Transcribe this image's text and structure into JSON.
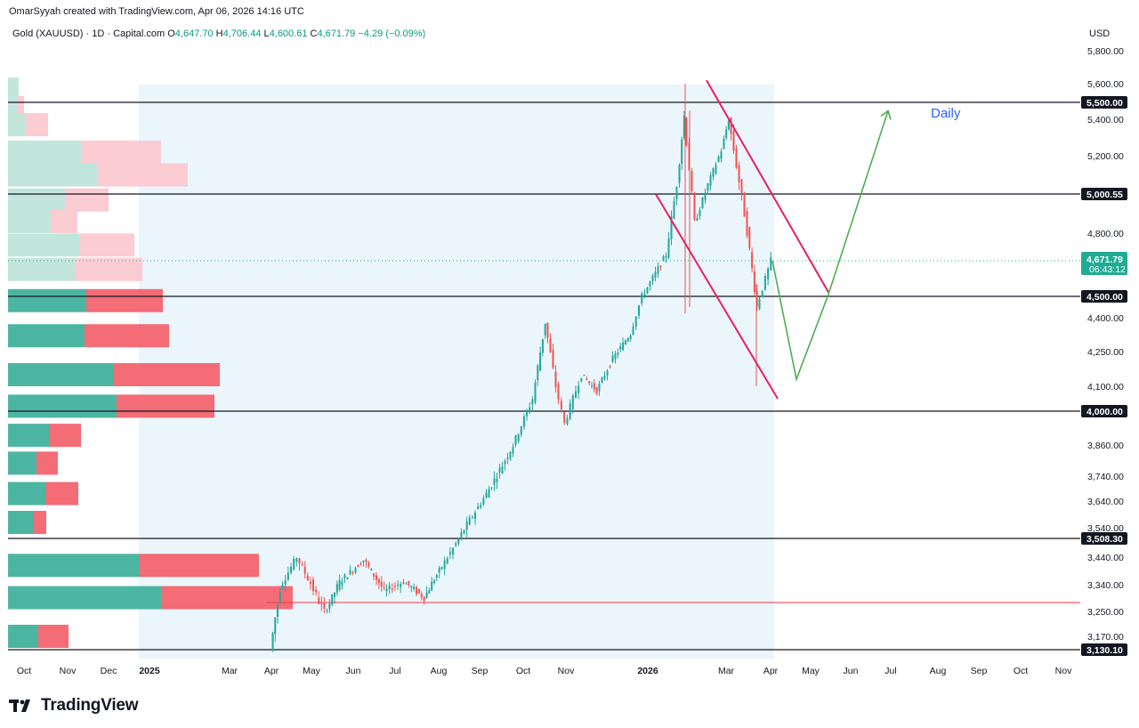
{
  "header": {
    "attribution": "OmarSyyah created with TradingView.com, Apr 06, 2026 14:16 UTC"
  },
  "legend": {
    "symbol": "Gold (XAUUSD) · 1D · Capital.com",
    "open_label": "O",
    "open": "4,647.70",
    "high_label": "H",
    "high": "4,706.44",
    "low_label": "L",
    "low": "4,600.61",
    "close_label": "C",
    "close": "4,671.79",
    "change": "−4.29 (−0.09%)"
  },
  "currency": "USD",
  "logo_text": "TradingView",
  "colors": {
    "up": "#26a69a",
    "down": "#ef5350",
    "channel": "#e91e63",
    "projection": "#4caf50",
    "volume_up": "#4db6a2",
    "volume_down": "#f36c76",
    "highlight": "#eaf5fc",
    "price_badge": "#22ab94",
    "annotation": "#2962ff"
  },
  "chart_data": {
    "type": "candlestick",
    "timeframe": "1D",
    "x_ticks": [
      "Oct",
      "Nov",
      "Dec",
      "2025",
      "Mar",
      "Apr",
      "May",
      "Jun",
      "Jul",
      "Aug",
      "Sep",
      "Oct",
      "Nov",
      "2026",
      "Mar",
      "Apr",
      "May",
      "Jun",
      "Jul",
      "Aug",
      "Sep",
      "Oct",
      "Nov"
    ],
    "y_ticks": [
      "5,800.00",
      "5,600.00",
      "5,400.00",
      "5,200.00",
      "4,800.00",
      "4,400.00",
      "4,250.00",
      "4,100.00",
      "3,860.00",
      "3,740.00",
      "3,640.00",
      "3,540.00",
      "3,440.00",
      "3,340.00",
      "3,250.00",
      "3,170.00"
    ],
    "ylim": [
      3110,
      5860
    ],
    "horizontal_levels": [
      "5,500.00",
      "5,000.55",
      "4,500.00",
      "4,000.00",
      "3,508.30",
      "3,130.10"
    ],
    "red_level": 3285,
    "current_price": "4,671.79",
    "countdown": "06:43:12",
    "annotation": "Daily",
    "price_path": [
      {
        "x": "Apr",
        "y": 3130
      },
      {
        "x": "Apr",
        "y": 3330
      },
      {
        "x": "May",
        "y": 3440
      },
      {
        "x": "May",
        "y": 3250
      },
      {
        "x": "Jun",
        "y": 3350
      },
      {
        "x": "Jun",
        "y": 3430
      },
      {
        "x": "Jul",
        "y": 3320
      },
      {
        "x": "Jul",
        "y": 3350
      },
      {
        "x": "Aug",
        "y": 3300
      },
      {
        "x": "Aug",
        "y": 3390
      },
      {
        "x": "Sep",
        "y": 3520
      },
      {
        "x": "Sep",
        "y": 3650
      },
      {
        "x": "Sep",
        "y": 3860
      },
      {
        "x": "Oct",
        "y": 4050
      },
      {
        "x": "Oct",
        "y": 4380
      },
      {
        "x": "Oct",
        "y": 4100
      },
      {
        "x": "Nov",
        "y": 3950
      },
      {
        "x": "Nov",
        "y": 4150
      },
      {
        "x": "Nov",
        "y": 4080
      },
      {
        "x": "Dec",
        "y": 4220
      },
      {
        "x": "Dec",
        "y": 4330
      },
      {
        "x": "Dec",
        "y": 4500
      },
      {
        "x": "Jan",
        "y": 4700
      },
      {
        "x": "Jan",
        "y": 5050
      },
      {
        "x": "Jan",
        "y": 5420
      },
      {
        "x": "Feb",
        "y": 4850
      },
      {
        "x": "Feb",
        "y": 5050
      },
      {
        "x": "Mar",
        "y": 5230
      },
      {
        "x": "Mar",
        "y": 5400
      },
      {
        "x": "Mar",
        "y": 4900
      },
      {
        "x": "Mar",
        "y": 4450
      },
      {
        "x": "Apr",
        "y": 4672
      }
    ],
    "channel": [
      {
        "from": {
          "x": "Feb",
          "y": 5620
        },
        "to": {
          "x": "Apr",
          "y": 4520
        }
      },
      {
        "from": {
          "x": "Jan",
          "y": 5000
        },
        "to": {
          "x": "Apr",
          "y": 4050
        }
      }
    ],
    "projection": [
      {
        "x": "Apr",
        "y": 4672
      },
      {
        "x": "Apr",
        "y": 4130
      },
      {
        "x": "May",
        "y": 4510
      },
      {
        "x": "Jul",
        "y": 5450
      }
    ],
    "volume_profile": [
      {
        "price": 5570,
        "up": 12,
        "down": 0
      },
      {
        "price": 5470,
        "up": 10,
        "down": 8
      },
      {
        "price": 5370,
        "up": 20,
        "down": 25
      },
      {
        "price": 5220,
        "up": 82,
        "down": 90
      },
      {
        "price": 5100,
        "up": 100,
        "down": 102
      },
      {
        "price": 4970,
        "up": 65,
        "down": 48
      },
      {
        "price": 4860,
        "up": 48,
        "down": 30
      },
      {
        "price": 4745,
        "up": 80,
        "down": 62
      },
      {
        "price": 4630,
        "up": 75,
        "down": 76
      },
      {
        "price": 4480,
        "up": 88,
        "down": 86
      },
      {
        "price": 4320,
        "up": 86,
        "down": 95
      },
      {
        "price": 4150,
        "up": 118,
        "down": 120
      },
      {
        "price": 4020,
        "up": 122,
        "down": 110
      },
      {
        "price": 3900,
        "up": 47,
        "down": 35
      },
      {
        "price": 3790,
        "up": 32,
        "down": 24
      },
      {
        "price": 3670,
        "up": 42,
        "down": 37
      },
      {
        "price": 3560,
        "up": 28,
        "down": 15
      },
      {
        "price": 3410,
        "up": 148,
        "down": 134
      },
      {
        "price": 3300,
        "up": 172,
        "down": 148
      },
      {
        "price": 3170,
        "up": 34,
        "down": 34
      }
    ]
  }
}
